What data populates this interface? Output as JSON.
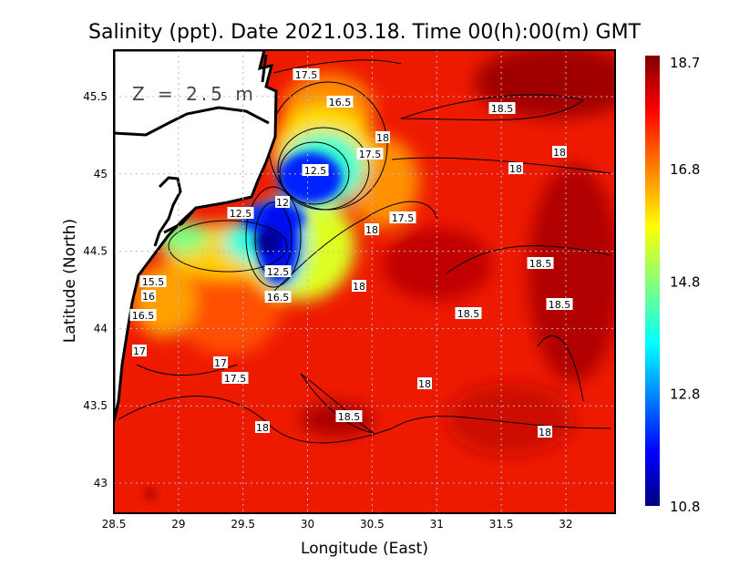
{
  "chart_data": {
    "type": "heatmap",
    "title": "Salinity (ppt). Date 2021.03.18. Time 00(h):00(m) GMT",
    "annotation": "Z = 2.5 m",
    "xlabel": "Longitude (East)",
    "ylabel": "Latitude (North)",
    "xlim": [
      28.5,
      32.38
    ],
    "ylim": [
      42.8,
      45.8
    ],
    "xticks": [
      "28.5",
      "29",
      "29.5",
      "30",
      "30.5",
      "31",
      "31.5",
      "32"
    ],
    "yticks": [
      "45.5",
      "45",
      "44.5",
      "44",
      "43.5",
      "43"
    ],
    "grid": true,
    "colorbar": {
      "range": [
        10.8,
        18.7
      ],
      "ticks": [
        "18.7",
        "16.8",
        "14.8",
        "12.8",
        "10.8"
      ],
      "colormap": "jet"
    },
    "contour_labels": [
      "17.5",
      "16.5",
      "18.5",
      "18",
      "17.5",
      "18",
      "12.5",
      "18",
      "12",
      "12.5",
      "17.5",
      "18",
      "18.5",
      "15.5",
      "12.5",
      "16",
      "16.5",
      "18",
      "18.5",
      "16.5",
      "18.5",
      "17",
      "17",
      "17.5",
      "18",
      "18.5",
      "18",
      "18"
    ],
    "land_color": "#ffffff",
    "min_region": "low-salinity plume near 29.7E 44.6N (~11)",
    "max_region": "offshore east (~18.7)"
  }
}
